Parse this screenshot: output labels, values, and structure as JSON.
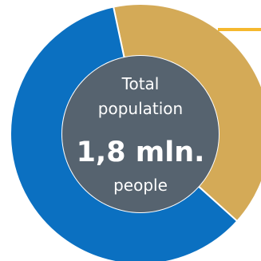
{
  "chart_data": {
    "type": "pie",
    "style": "donut",
    "segments": [
      {
        "value": 40,
        "color": "#D4AA57"
      },
      {
        "value": 60,
        "color": "#0B70C1"
      }
    ],
    "center": {
      "label_line1": "Total",
      "label_line2": "population",
      "value": "1,8 mln.",
      "unit": "people",
      "fill_color": "#56636F"
    },
    "callout_color": "#F5B82E"
  }
}
